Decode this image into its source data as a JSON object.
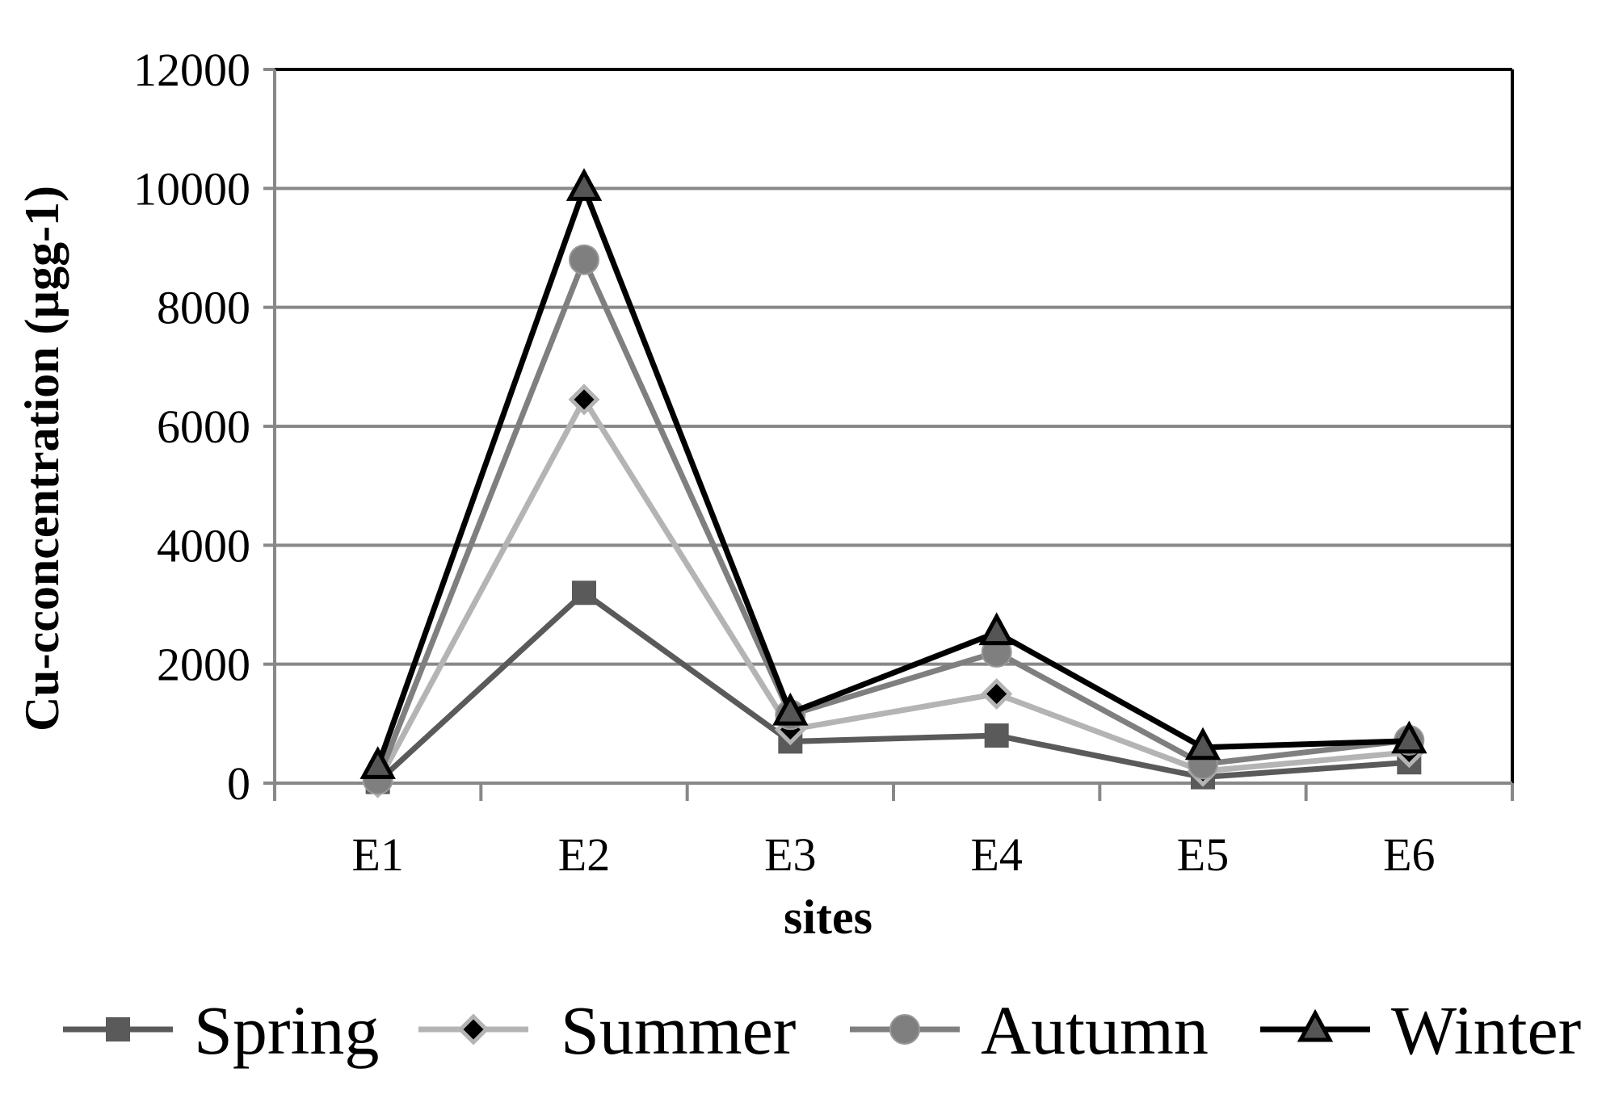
{
  "chart_data": {
    "type": "line",
    "title": "",
    "xlabel": "sites",
    "ylabel": "Cu-cconcentration (µgg-1)",
    "categories": [
      "E1",
      "E2",
      "E3",
      "E4",
      "E5",
      "E6"
    ],
    "ylim": [
      0,
      12000
    ],
    "yticks": [
      0,
      2000,
      4000,
      6000,
      8000,
      10000,
      12000
    ],
    "grid": true,
    "legend_position": "bottom",
    "series": [
      {
        "name": "Spring",
        "values": [
          20,
          3200,
          700,
          800,
          100,
          350
        ],
        "color": "#5a5a5a",
        "marker": "square"
      },
      {
        "name": "Summer",
        "values": [
          10,
          6450,
          900,
          1500,
          200,
          520
        ],
        "color": "#b4b4b4",
        "marker": "diamond"
      },
      {
        "name": "Autumn",
        "values": [
          60,
          8800,
          1150,
          2200,
          320,
          720
        ],
        "color": "#7f7f7f",
        "marker": "circle"
      },
      {
        "name": "Winter",
        "values": [
          280,
          10000,
          1180,
          2530,
          600,
          710
        ],
        "color": "#000000",
        "marker": "triangle"
      }
    ]
  }
}
